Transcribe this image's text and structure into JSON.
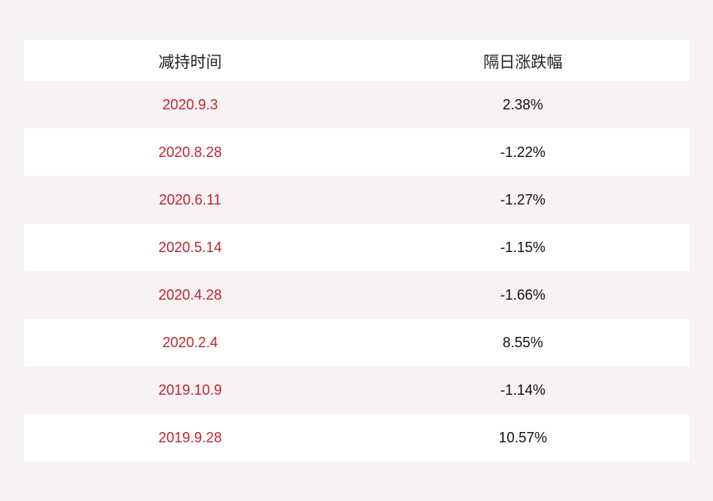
{
  "table": {
    "headers": [
      "减持时间",
      "隔日涨跌幅"
    ],
    "rows": [
      {
        "date": "2020.9.3",
        "change": "2.38%"
      },
      {
        "date": "2020.8.28",
        "change": "-1.22%"
      },
      {
        "date": "2020.6.11",
        "change": "-1.27%"
      },
      {
        "date": "2020.5.14",
        "change": "-1.15%"
      },
      {
        "date": "2020.4.28",
        "change": "-1.66%"
      },
      {
        "date": "2020.2.4",
        "change": "8.55%"
      },
      {
        "date": "2019.10.9",
        "change": "-1.14%"
      },
      {
        "date": "2019.9.28",
        "change": "10.57%"
      }
    ]
  },
  "colors": {
    "date_text": "#c0262d",
    "background": "#f7f2f4",
    "stripe": "#ffffff"
  }
}
